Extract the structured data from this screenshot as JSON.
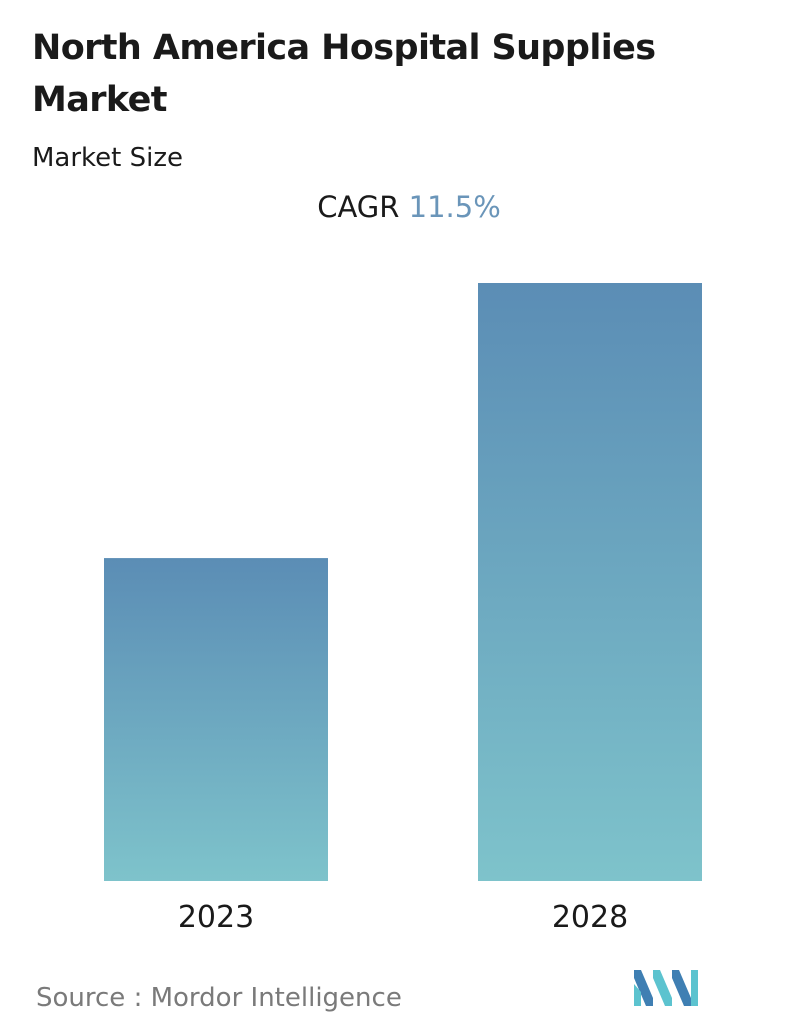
{
  "header": {
    "title": "North America Hospital Supplies Market",
    "subtitle": "Market Size"
  },
  "cagr": {
    "label": "CAGR",
    "value": "11.5%"
  },
  "chart_data": {
    "type": "bar",
    "categories": [
      "2023",
      "2028"
    ],
    "values": [
      0.54,
      1.0
    ],
    "value_scale": "relative (no axis shown)",
    "grid": false,
    "legend": "none",
    "colors": {
      "bar_top": "#5b8db5",
      "bar_bottom": "#7ec3cb"
    }
  },
  "footer": {
    "source_label": "Source :",
    "source_name": "Mordor Intelligence",
    "logo_icon": "mordor-intelligence-logo-icon",
    "logo_colors": [
      "#3f7fb3",
      "#5cc3cf"
    ]
  }
}
